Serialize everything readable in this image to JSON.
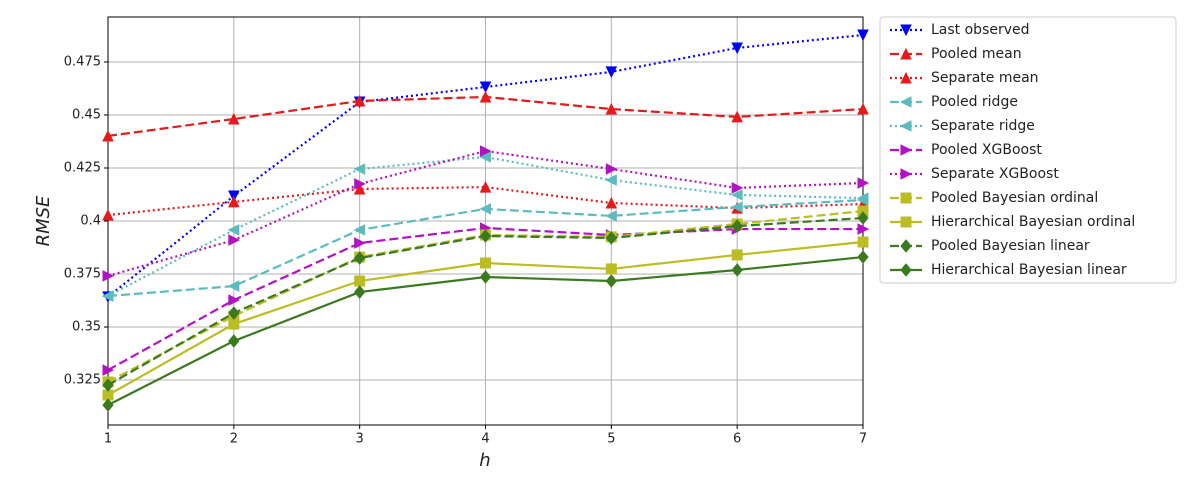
{
  "chart_data": {
    "type": "line",
    "xlabel": "h",
    "ylabel": "RMSE",
    "x": [
      1,
      2,
      3,
      4,
      5,
      6,
      7
    ],
    "xlim": [
      1,
      7
    ],
    "xticks": [
      1,
      2,
      3,
      4,
      5,
      6,
      7
    ],
    "ylim": [
      0.3038,
      0.4962
    ],
    "yticks": [
      0.325,
      0.35,
      0.375,
      0.4,
      0.425,
      0.45,
      0.475
    ],
    "grid": true,
    "legend": "outside right",
    "series": [
      {
        "name": "Last observed",
        "color": "#0000ff",
        "marker": "v",
        "linestyle": "dotted",
        "values": [
          0.3642,
          0.4118,
          0.4561,
          0.4632,
          0.4703,
          0.4816,
          0.4877
        ]
      },
      {
        "name": "Pooled mean",
        "color": "#e41a1c",
        "marker": "^",
        "linestyle": "dashed",
        "values": [
          0.4401,
          0.4481,
          0.4566,
          0.4585,
          0.4528,
          0.4491,
          0.4528
        ]
      },
      {
        "name": "Separate mean",
        "color": "#e41a1c",
        "marker": "^",
        "linestyle": "dotted",
        "values": [
          0.4028,
          0.409,
          0.4151,
          0.416,
          0.4085,
          0.4061,
          0.408
        ]
      },
      {
        "name": "Pooled ridge",
        "color": "#5bbcc0",
        "marker": "<",
        "linestyle": "dashed",
        "values": [
          0.3646,
          0.3693,
          0.3958,
          0.4057,
          0.4024,
          0.4066,
          0.4099
        ]
      },
      {
        "name": "Separate ridge",
        "color": "#5bbcc0",
        "marker": "<",
        "linestyle": "dotted",
        "values": [
          0.3646,
          0.3958,
          0.4245,
          0.4302,
          0.4193,
          0.4123,
          0.4108
        ]
      },
      {
        "name": "Pooled XGBoost",
        "color": "#b312c2",
        "marker": ">",
        "linestyle": "dashed",
        "values": [
          0.3297,
          0.3627,
          0.3896,
          0.3967,
          0.3934,
          0.3962,
          0.3962
        ]
      },
      {
        "name": "Separate XGBoost",
        "color": "#b312c2",
        "marker": ">",
        "linestyle": "dotted",
        "values": [
          0.3741,
          0.391,
          0.4175,
          0.433,
          0.4245,
          0.4156,
          0.4179
        ]
      },
      {
        "name": "Pooled Bayesian ordinal",
        "color": "#bcbd22",
        "marker": "s",
        "linestyle": "dashed",
        "values": [
          0.3241,
          0.3552,
          0.383,
          0.3934,
          0.3925,
          0.3986,
          0.4047
        ]
      },
      {
        "name": "Hierarchical Bayesian ordinal",
        "color": "#bcbd22",
        "marker": "s",
        "linestyle": "solid",
        "values": [
          0.3179,
          0.3514,
          0.3717,
          0.3802,
          0.3774,
          0.384,
          0.3901
        ]
      },
      {
        "name": "Pooled Bayesian linear",
        "color": "#3b7a1e",
        "marker": "D",
        "linestyle": "dashed",
        "values": [
          0.3226,
          0.3566,
          0.3825,
          0.3929,
          0.392,
          0.3976,
          0.4014
        ]
      },
      {
        "name": "Hierarchical Bayesian linear",
        "color": "#3b7a1e",
        "marker": "D",
        "linestyle": "solid",
        "values": [
          0.3132,
          0.3434,
          0.3665,
          0.3736,
          0.3717,
          0.3769,
          0.383
        ]
      }
    ]
  }
}
